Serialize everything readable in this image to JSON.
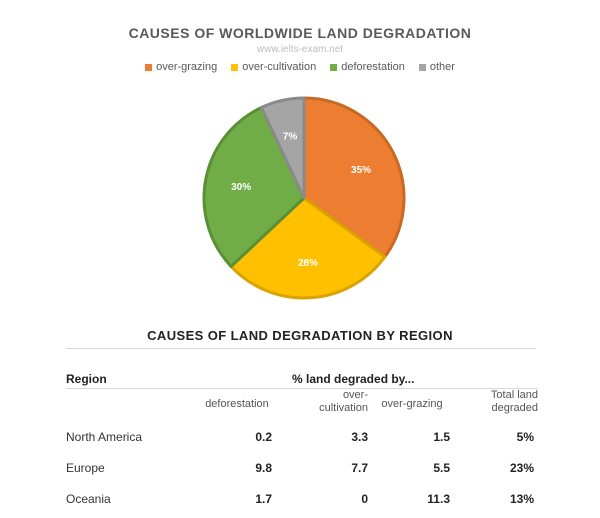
{
  "chart_data": [
    {
      "type": "pie",
      "title": "CAUSES OF WORLDWIDE LAND DEGRADATION",
      "watermark": "www.ielts-exam.net",
      "legend_placement": "top",
      "slices": [
        {
          "name": "over-grazing",
          "value": 35,
          "label": "35%",
          "color": "#ed7d31",
          "stroke": "#c96a24"
        },
        {
          "name": "over-cultivation",
          "value": 28,
          "label": "28%",
          "color": "#ffc000",
          "stroke": "#d9a300"
        },
        {
          "name": "deforestation",
          "value": 30,
          "label": "30%",
          "color": "#70ad47",
          "stroke": "#5a8f37"
        },
        {
          "name": "other",
          "value": 7,
          "label": "7%",
          "color": "#a5a5a5",
          "stroke": "#8a8a8a"
        }
      ]
    },
    {
      "type": "table",
      "title": "CAUSES OF LAND DEGRADATION BY REGION",
      "region_header": "Region",
      "group_header": "% land degraded by...",
      "columns": [
        {
          "key": "deforestation",
          "lines": [
            "deforestation"
          ]
        },
        {
          "key": "over_cultivation",
          "lines": [
            "over-",
            "cultivation"
          ]
        },
        {
          "key": "over_grazing",
          "lines": [
            "over-grazing"
          ]
        },
        {
          "key": "total",
          "lines": [
            "Total land",
            "degraded"
          ]
        }
      ],
      "rows": [
        {
          "region": "North America",
          "deforestation": "0.2",
          "over_cultivation": "3.3",
          "over_grazing": "1.5",
          "total": "5%"
        },
        {
          "region": "Europe",
          "deforestation": "9.8",
          "over_cultivation": "7.7",
          "over_grazing": "5.5",
          "total": "23%"
        },
        {
          "region": "Oceania",
          "deforestation": "1.7",
          "over_cultivation": "0",
          "over_grazing": "11.3",
          "total": "13%"
        }
      ]
    }
  ]
}
